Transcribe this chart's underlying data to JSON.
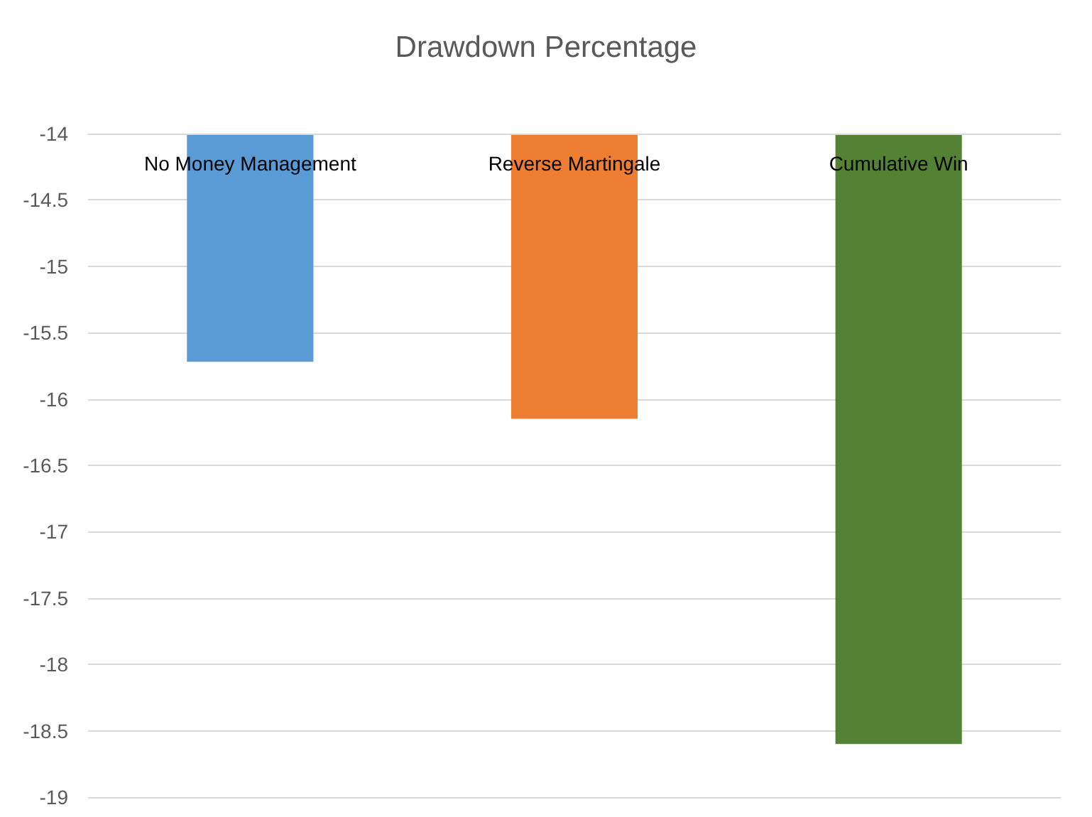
{
  "chart_data": {
    "type": "bar",
    "title": "Drawdown Percentage",
    "categories": [
      "No Money Management",
      "Reverse Martingale",
      "Cumulative Win"
    ],
    "values": [
      -15.72,
      -16.15,
      -18.6
    ],
    "colors": [
      "#5b9bd5",
      "#ed7d31",
      "#548235"
    ],
    "ylim": [
      -19,
      -14
    ],
    "yticks": [
      -19,
      -18.5,
      -18,
      -17.5,
      -17,
      -16.5,
      -16,
      -15.5,
      -15,
      -14.5,
      -14
    ],
    "grid": "y"
  }
}
